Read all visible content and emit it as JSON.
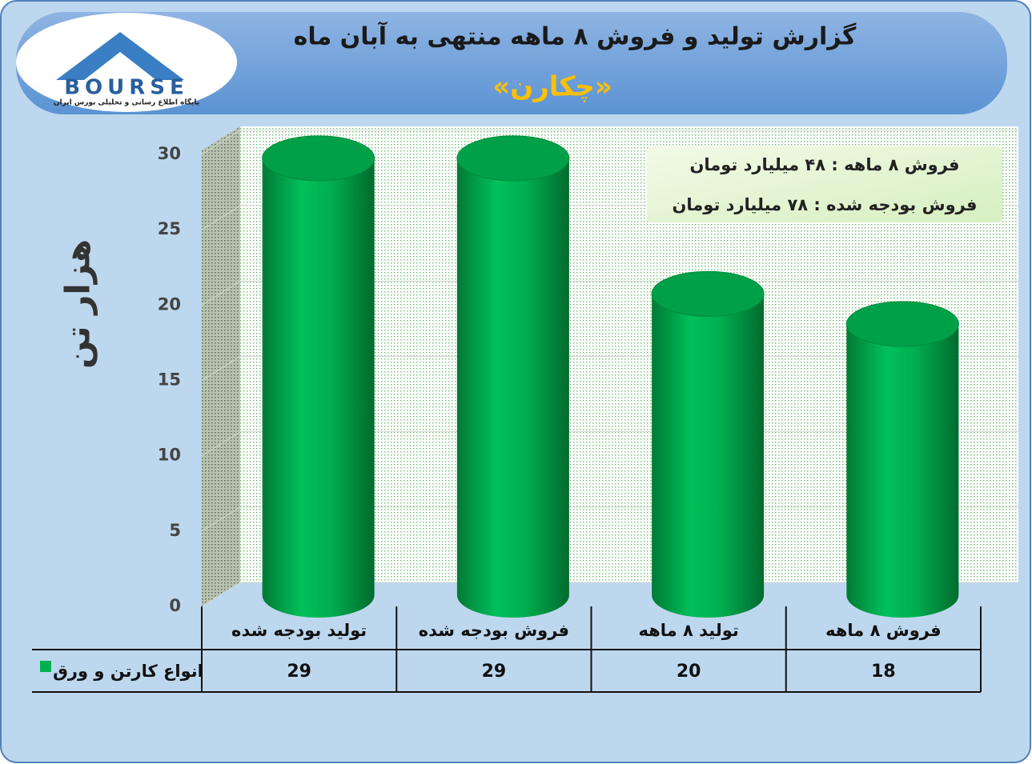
{
  "logo": {
    "name": "BOURSE",
    "tagline": "پایگاه اطلاع رسانی و تحلیلی بورس ایران"
  },
  "chart_data": {
    "type": "bar",
    "title": "گزارش تولید و فروش ۸ ماهه منتهی به آبان ماه",
    "subtitle": "«چکارن»",
    "y_label": "هزار تن",
    "annotations": [
      "فروش ۸ ماهه : ۴۸ میلیارد تومان",
      "فروش بودجه شده : ۷۸ میلیارد تومان"
    ],
    "categories": [
      "تولید بودجه شده",
      "فروش بودجه شده",
      "تولید ۸ ماهه",
      "فروش ۸ ماهه"
    ],
    "series": [
      {
        "name": "انواع کارتن و ورق",
        "color": "#00b050",
        "values": [
          29,
          29,
          20,
          18
        ]
      }
    ],
    "ylim": [
      0,
      30
    ],
    "yticks": [
      0,
      5,
      10,
      15,
      20,
      25,
      30
    ],
    "grid": true,
    "data_table": true
  }
}
